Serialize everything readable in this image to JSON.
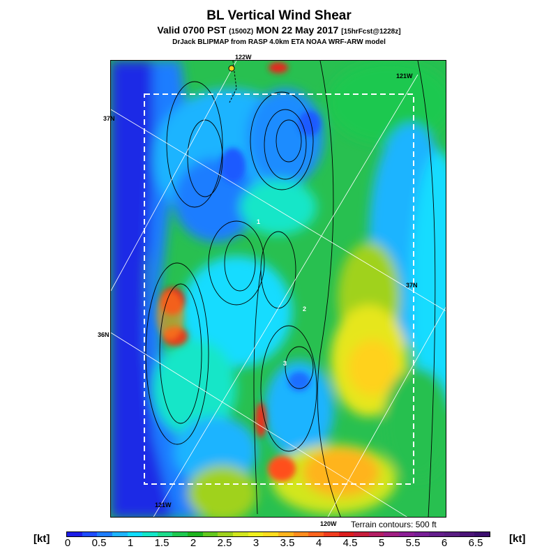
{
  "header": {
    "title": "BL Vertical Wind Shear",
    "subtitle_main": "Valid 0700 PST",
    "subtitle_utc": "(1500Z)",
    "subtitle_date": "MON 22 May 2017",
    "subtitle_fcst": "[15hrFcst@1228z]",
    "model_line": "DrJack BLIPMAP from RASP 4.0km ETA NOAA WRF-ARW model"
  },
  "map": {
    "coord_labels": {
      "lon_122_top": "122W",
      "lon_121_top": "121W",
      "lat_37_left": "37N",
      "lat_37_right": "37N",
      "lat_36_left": "36N",
      "lon_121_bottom": "121W",
      "lon_120_bottom": "120W"
    },
    "point_labels": [
      "1",
      "2",
      "3"
    ],
    "terrain_note": "Terrain contours: 500 ft"
  },
  "colorbar": {
    "unit_left": "[kt]",
    "unit_right": "[kt]",
    "tick_labels": [
      "0",
      "0.5",
      "1",
      "1.5",
      "2",
      "2.5",
      "3",
      "3.5",
      "4",
      "4.5",
      "5",
      "5.5",
      "6",
      "6.5"
    ],
    "colors": [
      "#1d1de6",
      "#1e4cff",
      "#1e7dff",
      "#1eb4ff",
      "#12dcff",
      "#14e6c8",
      "#1edc8c",
      "#1ec850",
      "#1eb41e",
      "#64c81e",
      "#a0d21e",
      "#d2e61e",
      "#f0f01e",
      "#ffdc1e",
      "#ffb41e",
      "#ff8c1e",
      "#ff641e",
      "#f03c1e",
      "#dc1e1e",
      "#c81e3c",
      "#b41e64",
      "#a01e82",
      "#8c1e96",
      "#781e96",
      "#641e8c",
      "#5a1e82",
      "#4b1478",
      "#3c0f6e"
    ]
  }
}
